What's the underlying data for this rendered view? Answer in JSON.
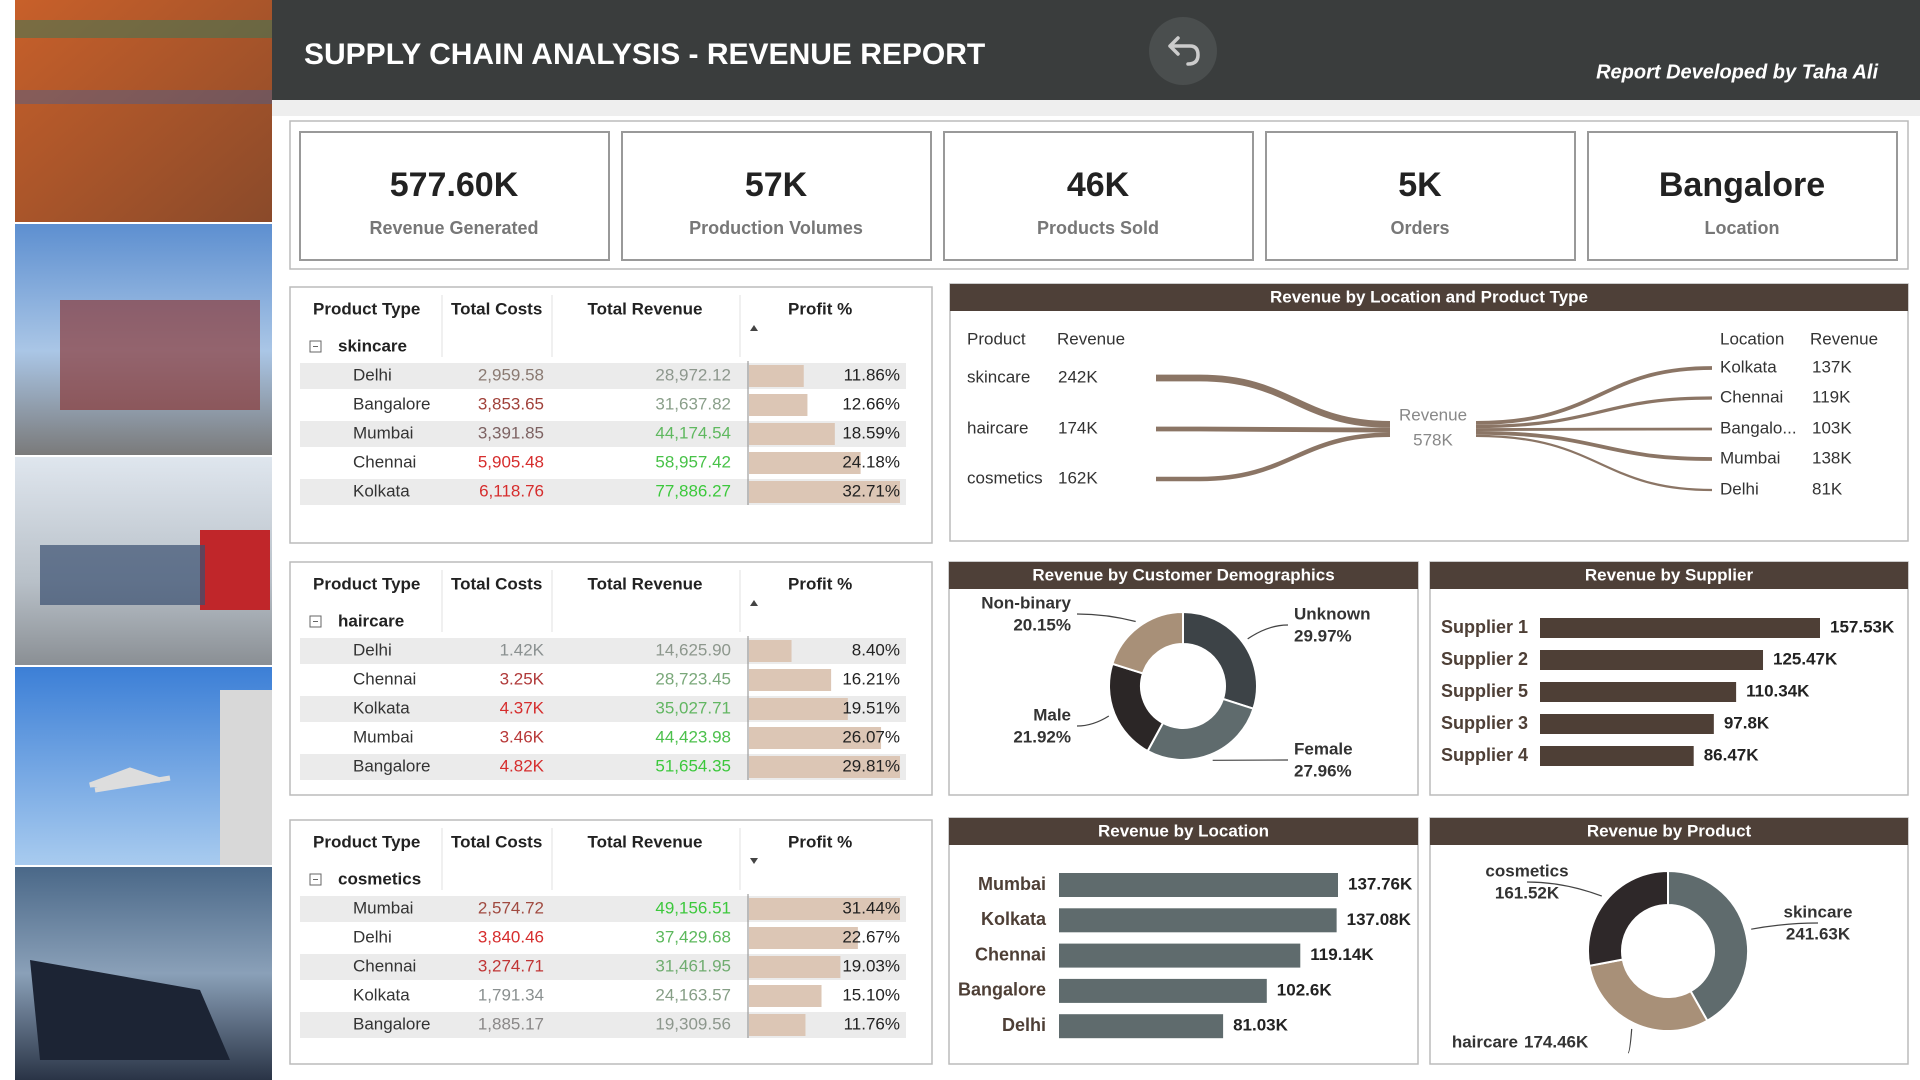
{
  "header": {
    "title": "SUPPLY CHAIN ANALYSIS - REVENUE REPORT",
    "credit": "Report Developed by Taha Ali"
  },
  "kpis": [
    {
      "value": "577.60K",
      "label": "Revenue Generated"
    },
    {
      "value": "57K",
      "label": "Production Volumes"
    },
    {
      "value": "46K",
      "label": "Products Sold"
    },
    {
      "value": "5K",
      "label": "Orders"
    },
    {
      "value": "Bangalore",
      "label": "Location"
    }
  ],
  "tables": [
    {
      "columns": [
        "Product Type",
        "Total Costs",
        "Total Revenue",
        "Profit %"
      ],
      "group": "skincare",
      "sort": "asc",
      "rows": [
        [
          "Delhi",
          "2,959.58",
          "28,972.12"
        ],
        [
          "Bangalore",
          "3,853.65",
          "31,637.82"
        ],
        [
          "Mumbai",
          "3,391.85",
          "44,174.54"
        ],
        [
          "Chennai",
          "5,905.48",
          "58,957.42"
        ],
        [
          "Kolkata",
          "6,118.76",
          "77,886.27"
        ]
      ],
      "cost_colors": [
        "#8a7a72",
        "#a0413a",
        "#7d6262",
        "#d62d2d",
        "#d62d2d"
      ],
      "revenue_colors": [
        "#8d978d",
        "#8a9f8a",
        "#5fb85f",
        "#48c248",
        "#3cc83c"
      ],
      "profit": {
        "values": [
          11.86,
          12.66,
          18.59,
          24.18,
          32.71
        ],
        "value_labels": [
          "11.86%",
          "12.66%",
          "18.59%",
          "24.18%",
          "32.71%"
        ],
        "color": "#dcc6b5"
      }
    },
    {
      "columns": [
        "Product Type",
        "Total Costs",
        "Total Revenue",
        "Profit %"
      ],
      "group": "haircare",
      "sort": "asc",
      "rows": [
        [
          "Delhi",
          "1.42K",
          "14,625.90"
        ],
        [
          "Chennai",
          "3.25K",
          "28,723.45"
        ],
        [
          "Kolkata",
          "4.37K",
          "35,027.71"
        ],
        [
          "Mumbai",
          "3.46K",
          "44,423.98"
        ],
        [
          "Bangalore",
          "4.82K",
          "51,654.35"
        ]
      ],
      "cost_colors": [
        "#8a9090",
        "#b03a3a",
        "#d62d2d",
        "#b83838",
        "#d62d2d"
      ],
      "revenue_colors": [
        "#8d978d",
        "#7aa87a",
        "#62b662",
        "#4cc04c",
        "#3cc83c"
      ],
      "profit": {
        "values": [
          8.4,
          16.21,
          19.51,
          26.07,
          29.81
        ],
        "value_labels": [
          "8.40%",
          "16.21%",
          "19.51%",
          "26.07%",
          "29.81%"
        ],
        "color": "#dcc6b5"
      }
    },
    {
      "columns": [
        "Product Type",
        "Total Costs",
        "Total Revenue",
        "Profit %"
      ],
      "group": "cosmetics",
      "sort": "desc",
      "rows": [
        [
          "Mumbai",
          "2,574.72",
          "49,156.51"
        ],
        [
          "Delhi",
          "3,840.46",
          "37,429.68"
        ],
        [
          "Chennai",
          "3,274.71",
          "31,461.95"
        ],
        [
          "Kolkata",
          "1,791.34",
          "24,163.57"
        ],
        [
          "Bangalore",
          "1,885.17",
          "19,309.56"
        ]
      ],
      "cost_colors": [
        "#a04a40",
        "#d62d2d",
        "#c03535",
        "#8a9090",
        "#8a8888"
      ],
      "revenue_colors": [
        "#3cc83c",
        "#5cb85c",
        "#70ac70",
        "#869e86",
        "#8d978d"
      ],
      "profit": {
        "values": [
          31.44,
          22.67,
          19.03,
          15.1,
          11.76
        ],
        "value_labels": [
          "31.44%",
          "22.67%",
          "19.03%",
          "15.10%",
          "11.76%"
        ],
        "color": "#dcc6b5"
      }
    }
  ],
  "chart_data": [
    {
      "type": "sankey",
      "title": "Revenue by Location and Product Type",
      "source_header": [
        "Product",
        "Revenue"
      ],
      "target_header": [
        "Location",
        "Revenue"
      ],
      "center": {
        "name": "Revenue",
        "value": 578,
        "value_label": "578K"
      },
      "sources": {
        "categories": [
          "skincare",
          "haircare",
          "cosmetics"
        ],
        "values": [
          242,
          174,
          162
        ],
        "value_labels": [
          "242K",
          "174K",
          "162K"
        ]
      },
      "targets": {
        "categories": [
          "Kolkata",
          "Chennai",
          "Bangalo...",
          "Mumbai",
          "Delhi"
        ],
        "values": [
          137,
          119,
          103,
          138,
          81
        ],
        "value_labels": [
          "137K",
          "119K",
          "103K",
          "138K",
          "81K"
        ]
      },
      "color": "#8b7565"
    },
    {
      "type": "donut",
      "title": "Revenue by Customer Demographics",
      "categories": [
        "Unknown",
        "Female",
        "Male",
        "Non-binary"
      ],
      "values": [
        29.97,
        27.96,
        21.92,
        20.15
      ],
      "value_labels": [
        "29.97%",
        "27.96%",
        "21.92%",
        "20.15%"
      ],
      "colors": [
        "#3d4347",
        "#5f6b6d",
        "#2b2626",
        "#a89078"
      ]
    },
    {
      "type": "bar",
      "title": "Revenue by Supplier",
      "categories": [
        "Supplier 1",
        "Supplier 2",
        "Supplier 5",
        "Supplier 3",
        "Supplier 4"
      ],
      "values": [
        157.53,
        125.47,
        110.34,
        97.8,
        86.47
      ],
      "value_labels": [
        "157.53K",
        "125.47K",
        "110.34K",
        "97.8K",
        "86.47K"
      ],
      "color": "#4e3f36"
    },
    {
      "type": "bar",
      "title": "Revenue by Location",
      "categories": [
        "Mumbai",
        "Kolkata",
        "Chennai",
        "Bangalore",
        "Delhi"
      ],
      "values": [
        137.76,
        137.08,
        119.14,
        102.6,
        81.03
      ],
      "value_labels": [
        "137.76K",
        "137.08K",
        "119.14K",
        "102.6K",
        "81.03K"
      ],
      "color": "#5f6b6d"
    },
    {
      "type": "donut",
      "title": "Revenue by Product",
      "categories": [
        "skincare",
        "haircare",
        "cosmetics"
      ],
      "values": [
        241.63,
        174.46,
        161.52
      ],
      "value_labels": [
        "241.63K",
        "174.46K",
        "161.52K"
      ],
      "colors": [
        "#5f6b6d",
        "#a89078",
        "#2e2829"
      ]
    }
  ]
}
